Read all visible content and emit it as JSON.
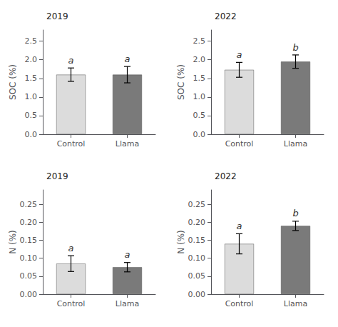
{
  "chart_data": [
    {
      "type": "bar",
      "title": "2019",
      "ylabel": "SOC (%)",
      "categories": [
        "Control",
        "Llama"
      ],
      "values": [
        1.6,
        1.6
      ],
      "errors": [
        0.18,
        0.22
      ],
      "annotations": [
        "a",
        "a"
      ],
      "colors": [
        "#dcdcdc",
        "#7a7a7a"
      ],
      "ylim": [
        0,
        2.8
      ],
      "yticks": [
        {
          "value": 0.0,
          "label": "0.0"
        },
        0.5,
        {
          "value": 1.0,
          "label": "1.0"
        },
        1.5,
        {
          "value": 2.0,
          "label": "2.0"
        },
        2.5
      ],
      "grid": false
    },
    {
      "type": "bar",
      "title": "2022",
      "ylabel": "SOC (%)",
      "categories": [
        "Control",
        "Llama"
      ],
      "values": [
        1.73,
        1.95
      ],
      "errors": [
        0.2,
        0.18
      ],
      "annotations": [
        "a",
        "b"
      ],
      "colors": [
        "#dcdcdc",
        "#7a7a7a"
      ],
      "ylim": [
        0,
        2.8
      ],
      "yticks": [
        {
          "value": 0.0,
          "label": "0.0"
        },
        0.5,
        {
          "value": 1.0,
          "label": "1.0"
        },
        1.5,
        {
          "value": 2.0,
          "label": "2.0"
        },
        2.5
      ],
      "grid": false
    },
    {
      "type": "bar",
      "title": "2019",
      "ylabel": "N (%)",
      "categories": [
        "Control",
        "Llama"
      ],
      "values": [
        0.085,
        0.075
      ],
      "errors": [
        0.022,
        0.013
      ],
      "annotations": [
        "a",
        "a"
      ],
      "colors": [
        "#dcdcdc",
        "#7a7a7a"
      ],
      "ylim": [
        0,
        0.29
      ],
      "yticks": [
        {
          "value": 0.0,
          "label": "0.00"
        },
        0.05,
        {
          "value": 0.1,
          "label": "0.10"
        },
        0.15,
        {
          "value": 0.2,
          "label": "0.20"
        },
        0.25
      ],
      "grid": false
    },
    {
      "type": "bar",
      "title": "2022",
      "ylabel": "N (%)",
      "categories": [
        "Control",
        "Llama"
      ],
      "values": [
        0.14,
        0.19
      ],
      "errors": [
        0.028,
        0.013
      ],
      "annotations": [
        "a",
        "b"
      ],
      "colors": [
        "#dcdcdc",
        "#7a7a7a"
      ],
      "ylim": [
        0,
        0.29
      ],
      "yticks": [
        {
          "value": 0.0,
          "label": "0.00"
        },
        0.05,
        {
          "value": 0.1,
          "label": "0.10"
        },
        0.15,
        {
          "value": 0.2,
          "label": "0.20"
        },
        0.25
      ],
      "grid": false
    }
  ]
}
